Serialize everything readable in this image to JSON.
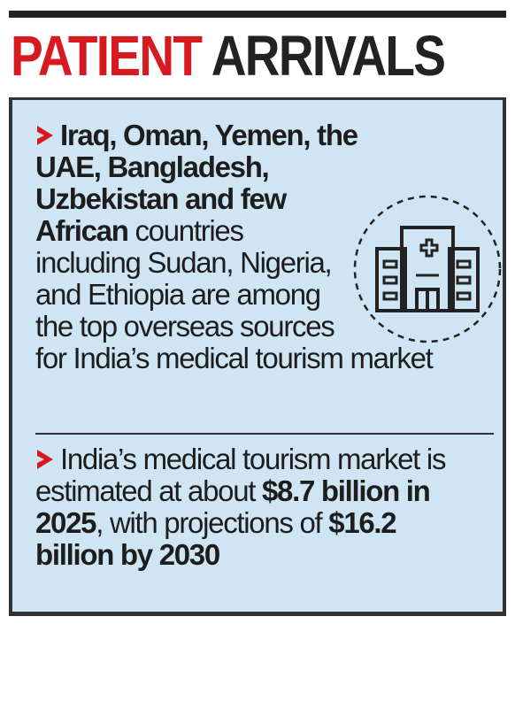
{
  "header": {
    "title_red": "PATIENT",
    "title_dark": "ARRIVALS"
  },
  "points": [
    {
      "runs": [
        {
          "text": "Iraq, Oman, Yemen, the UAE, Bangladesh, Uzbekistan and few African",
          "bold": true
        },
        {
          "text": " countries including Sudan, Nigeria, and Ethiopia are among the top overseas sources for India’s medical tourism market",
          "bold": false
        }
      ]
    },
    {
      "runs": [
        {
          "text": "India’s medical tourism market is estimated at about ",
          "bold": false
        },
        {
          "text": "$8.7 billion in 2025",
          "bold": true
        },
        {
          "text": ", with projections of ",
          "bold": false
        },
        {
          "text": "$16.2 billion by 2030",
          "bold": true
        }
      ]
    }
  ]
}
